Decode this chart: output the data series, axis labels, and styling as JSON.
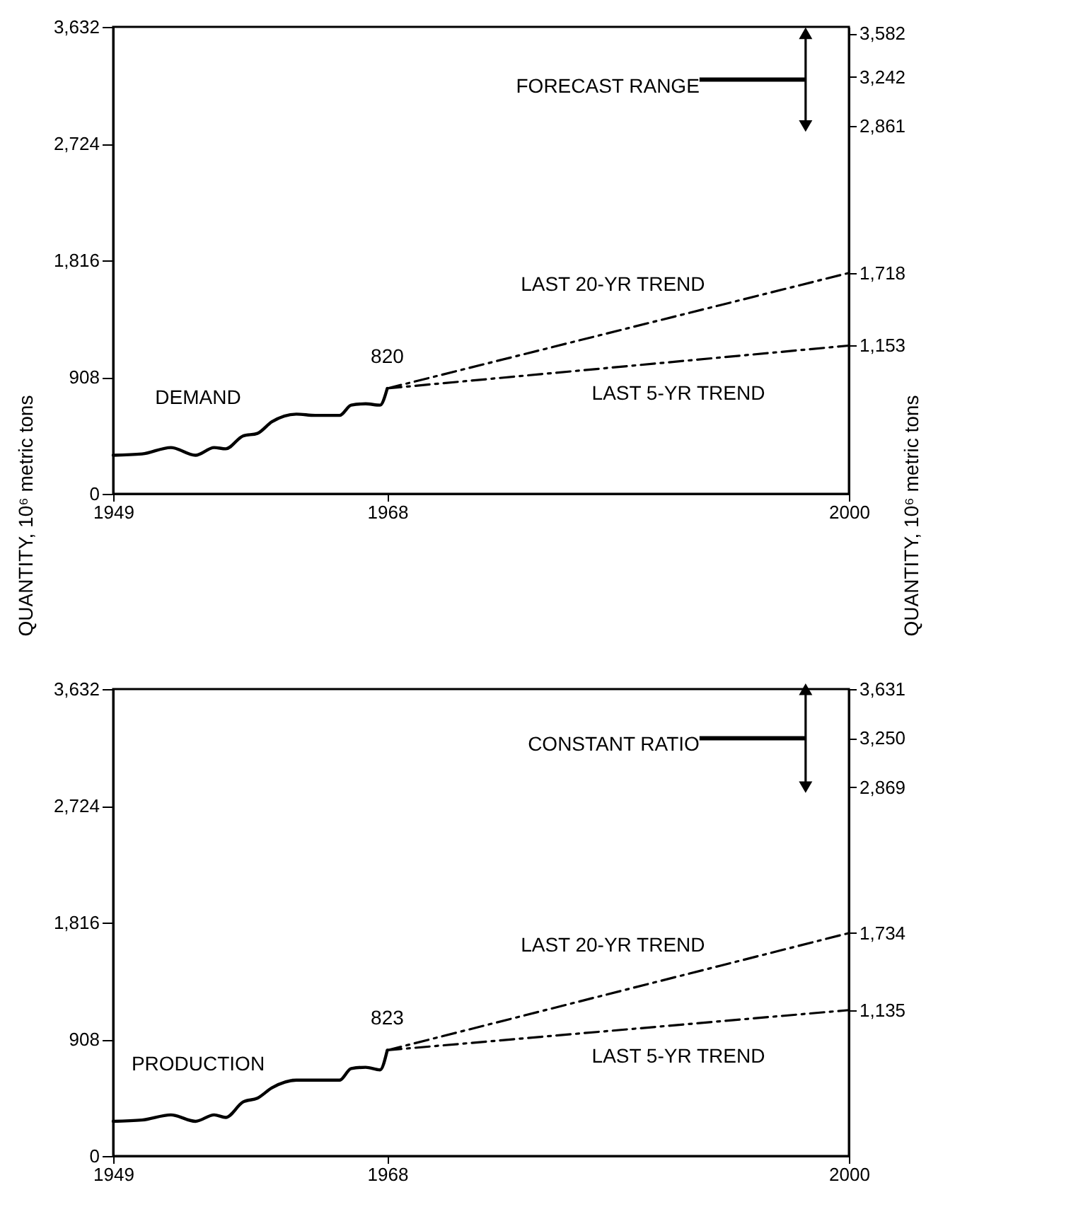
{
  "chart_data": [
    {
      "type": "line",
      "ylabel": "QUANTITY, 10⁶ metric tons",
      "y2label": "QUANTITY, 10⁶ metric tons",
      "xlim": [
        1949,
        2000
      ],
      "xticks": [
        1949,
        1968,
        2000
      ],
      "ylim": [
        0,
        3632
      ],
      "yticks": [
        0,
        908,
        {
          "value": 1816,
          "label": "1,816"
        },
        {
          "value": 2724,
          "label": "2,724"
        },
        {
          "value": 3632,
          "label": "3,632"
        }
      ],
      "y2lim": [
        0,
        3632
      ],
      "y2ticks": [
        {
          "value": 1153,
          "label": "1,153"
        },
        {
          "value": 1718,
          "label": "1,718"
        },
        {
          "value": 2861,
          "label": "2,861"
        },
        {
          "value": 3242,
          "label": "3,242"
        },
        {
          "value": 3582,
          "label": "3,582"
        }
      ],
      "series": [
        {
          "name": "DEMAND",
          "color": "#000000",
          "x": [
            1949,
            1951,
            1953,
            1954.7,
            1956,
            1956.8,
            1958,
            1959,
            1960,
            1961.7,
            1963,
            1964.7,
            1965.5,
            1966.5,
            1967.5,
            1968
          ],
          "values": [
            300,
            310,
            360,
            300,
            360,
            350,
            450,
            470,
            560,
            620,
            610,
            610,
            690,
            700,
            690,
            820
          ]
        },
        {
          "name": "LAST 20-YR TREND",
          "color": "#000000",
          "line_style": "dashed",
          "x": [
            1968,
            2000
          ],
          "values": [
            820,
            1718
          ]
        },
        {
          "name": "LAST 5-YR TREND",
          "color": "#000000",
          "line_style": "dashed",
          "x": [
            1968,
            2000
          ],
          "values": [
            820,
            1153
          ]
        },
        {
          "name": "FORECAST RANGE",
          "color": "#000000",
          "axis": "y2",
          "marker": "triangle",
          "x": [
            1997,
            1997
          ],
          "values": [
            2861,
            3582
          ]
        }
      ],
      "annotations": [
        "820"
      ]
    },
    {
      "type": "line",
      "xlim": [
        1949,
        2000
      ],
      "xticks": [
        1949,
        1968,
        2000
      ],
      "ylim": [
        0,
        3632
      ],
      "yticks": [
        0,
        908,
        {
          "value": 1816,
          "label": "1,816"
        },
        {
          "value": 2724,
          "label": "2,724"
        },
        {
          "value": 3632,
          "label": "3,632"
        }
      ],
      "y2lim": [
        0,
        3632
      ],
      "y2ticks": [
        {
          "value": 1135,
          "label": "1,135"
        },
        {
          "value": 1734,
          "label": "1,734"
        },
        {
          "value": 2869,
          "label": "2,869"
        },
        {
          "value": 3250,
          "label": "3,250"
        },
        {
          "value": 3631,
          "label": "3,631"
        }
      ],
      "series": [
        {
          "name": "PRODUCTION",
          "color": "#000000",
          "x": [
            1949,
            1951,
            1953,
            1954.7,
            1956,
            1956.8,
            1958,
            1959,
            1960,
            1961.7,
            1963,
            1964.7,
            1965.5,
            1966.5,
            1967.5,
            1968
          ],
          "values": [
            270,
            280,
            320,
            270,
            320,
            300,
            420,
            450,
            530,
            590,
            590,
            590,
            680,
            690,
            670,
            823
          ]
        },
        {
          "name": "LAST 20-YR TREND",
          "color": "#000000",
          "line_style": "dashed",
          "x": [
            1968,
            2000
          ],
          "values": [
            823,
            1734
          ]
        },
        {
          "name": "LAST 5-YR TREND",
          "color": "#000000",
          "line_style": "dashed",
          "x": [
            1968,
            2000
          ],
          "values": [
            823,
            1135
          ]
        },
        {
          "name": "CONSTANT RATIO",
          "color": "#000000",
          "axis": "y2",
          "marker": "triangle",
          "x": [
            1997,
            1997
          ],
          "values": [
            2869,
            3631
          ]
        }
      ],
      "annotations": [
        "823"
      ]
    }
  ]
}
